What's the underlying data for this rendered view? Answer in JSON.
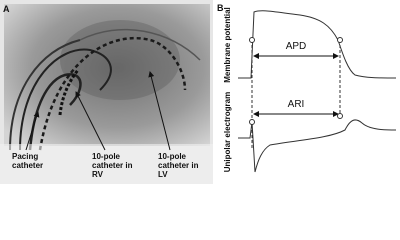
{
  "panel_a": {
    "letter": "A",
    "labels": [
      {
        "lines": [
          "Pacing",
          "catheter"
        ]
      },
      {
        "lines": [
          "10-pole",
          "catheter in",
          "RV"
        ]
      },
      {
        "lines": [
          "10-pole",
          "catheter in",
          "LV"
        ]
      }
    ]
  },
  "panel_b": {
    "letter": "B",
    "axis_labels": [
      "Membrane potential",
      "Unipolar electrogram"
    ],
    "intervals": [
      "APD",
      "ARI"
    ]
  }
}
